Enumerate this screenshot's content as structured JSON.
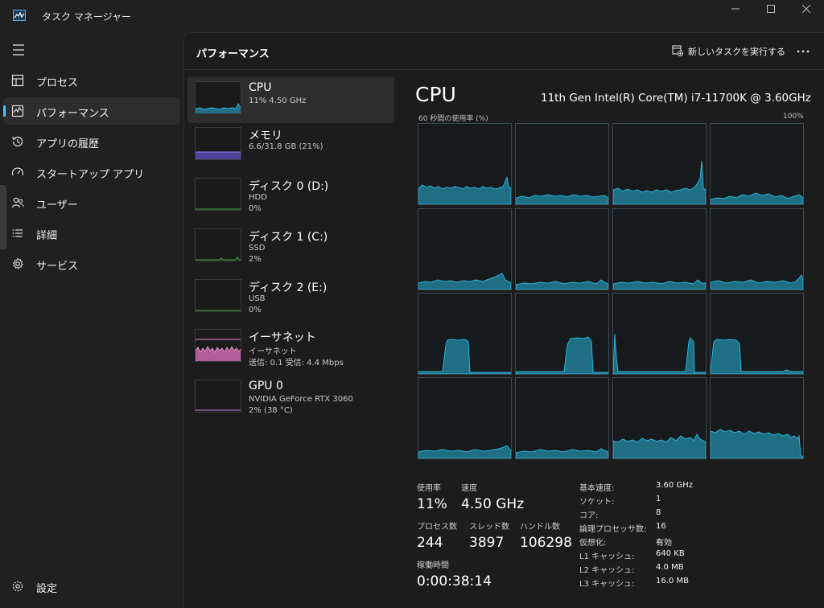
{
  "app": {
    "title": "タスク マネージャー"
  },
  "nav": {
    "items": [
      {
        "label": "プロセス"
      },
      {
        "label": "パフォーマンス"
      },
      {
        "label": "アプリの履歴"
      },
      {
        "label": "スタートアップ アプリ"
      },
      {
        "label": "ユーザー"
      },
      {
        "label": "詳細"
      },
      {
        "label": "サービス"
      }
    ],
    "settings_label": "設定"
  },
  "header": {
    "title": "パフォーマンス",
    "run_task_label": "新しいタスクを実行する"
  },
  "resources": [
    {
      "name": "CPU",
      "line2": "11%  4.50 GHz",
      "line3": ""
    },
    {
      "name": "メモリ",
      "line2": "6.6/31.8 GB (21%)",
      "line3": ""
    },
    {
      "name": "ディスク 0 (D:)",
      "line2": "HDD",
      "line3": "0%"
    },
    {
      "name": "ディスク 1 (C:)",
      "line2": "SSD",
      "line3": "2%"
    },
    {
      "name": "ディスク 2 (E:)",
      "line2": "USB",
      "line3": "0%"
    },
    {
      "name": "イーサネット",
      "line2": "イーサネット",
      "line3": "送信: 0.1 受信: 4.4 Mbps"
    },
    {
      "name": "GPU 0",
      "line2": "NVIDIA GeForce RTX 3060",
      "line3": "2% (38 °C)"
    }
  ],
  "cpu": {
    "title": "CPU",
    "model": "11th Gen Intel(R) Core(TM) i7-11700K @ 3.60GHz",
    "graph_label": "60 秒間の使用率 (%)",
    "graph_max": "100%",
    "stats": {
      "usage_label": "使用率",
      "usage": "11%",
      "speed_label": "速度",
      "speed": "4.50 GHz",
      "processes_label": "プロセス数",
      "processes": "244",
      "threads_label": "スレッド数",
      "threads": "3897",
      "handles_label": "ハンドル数",
      "handles": "106298",
      "uptime_label": "稼働時間",
      "uptime": "0:00:38:14"
    },
    "specs": [
      {
        "key": "基本速度:",
        "value": "3.60 GHz"
      },
      {
        "key": "ソケット:",
        "value": "1"
      },
      {
        "key": "コア:",
        "value": "8"
      },
      {
        "key": "論理プロセッサ数:",
        "value": "16"
      },
      {
        "key": "仮想化:",
        "value": "有効"
      },
      {
        "key": "L1 キャッシュ:",
        "value": "640 KB"
      },
      {
        "key": "L2 キャッシュ:",
        "value": "4.0 MB"
      },
      {
        "key": "L3 キャッシュ:",
        "value": "16.0 MB"
      }
    ]
  },
  "colors": {
    "cpu": "#2cb5d9",
    "memory": "#8f7cf0",
    "disk": "#48b04a",
    "ethernet": "#e58fc8",
    "gpu": "#b88ee0",
    "accent": "#4cc2ff"
  }
}
